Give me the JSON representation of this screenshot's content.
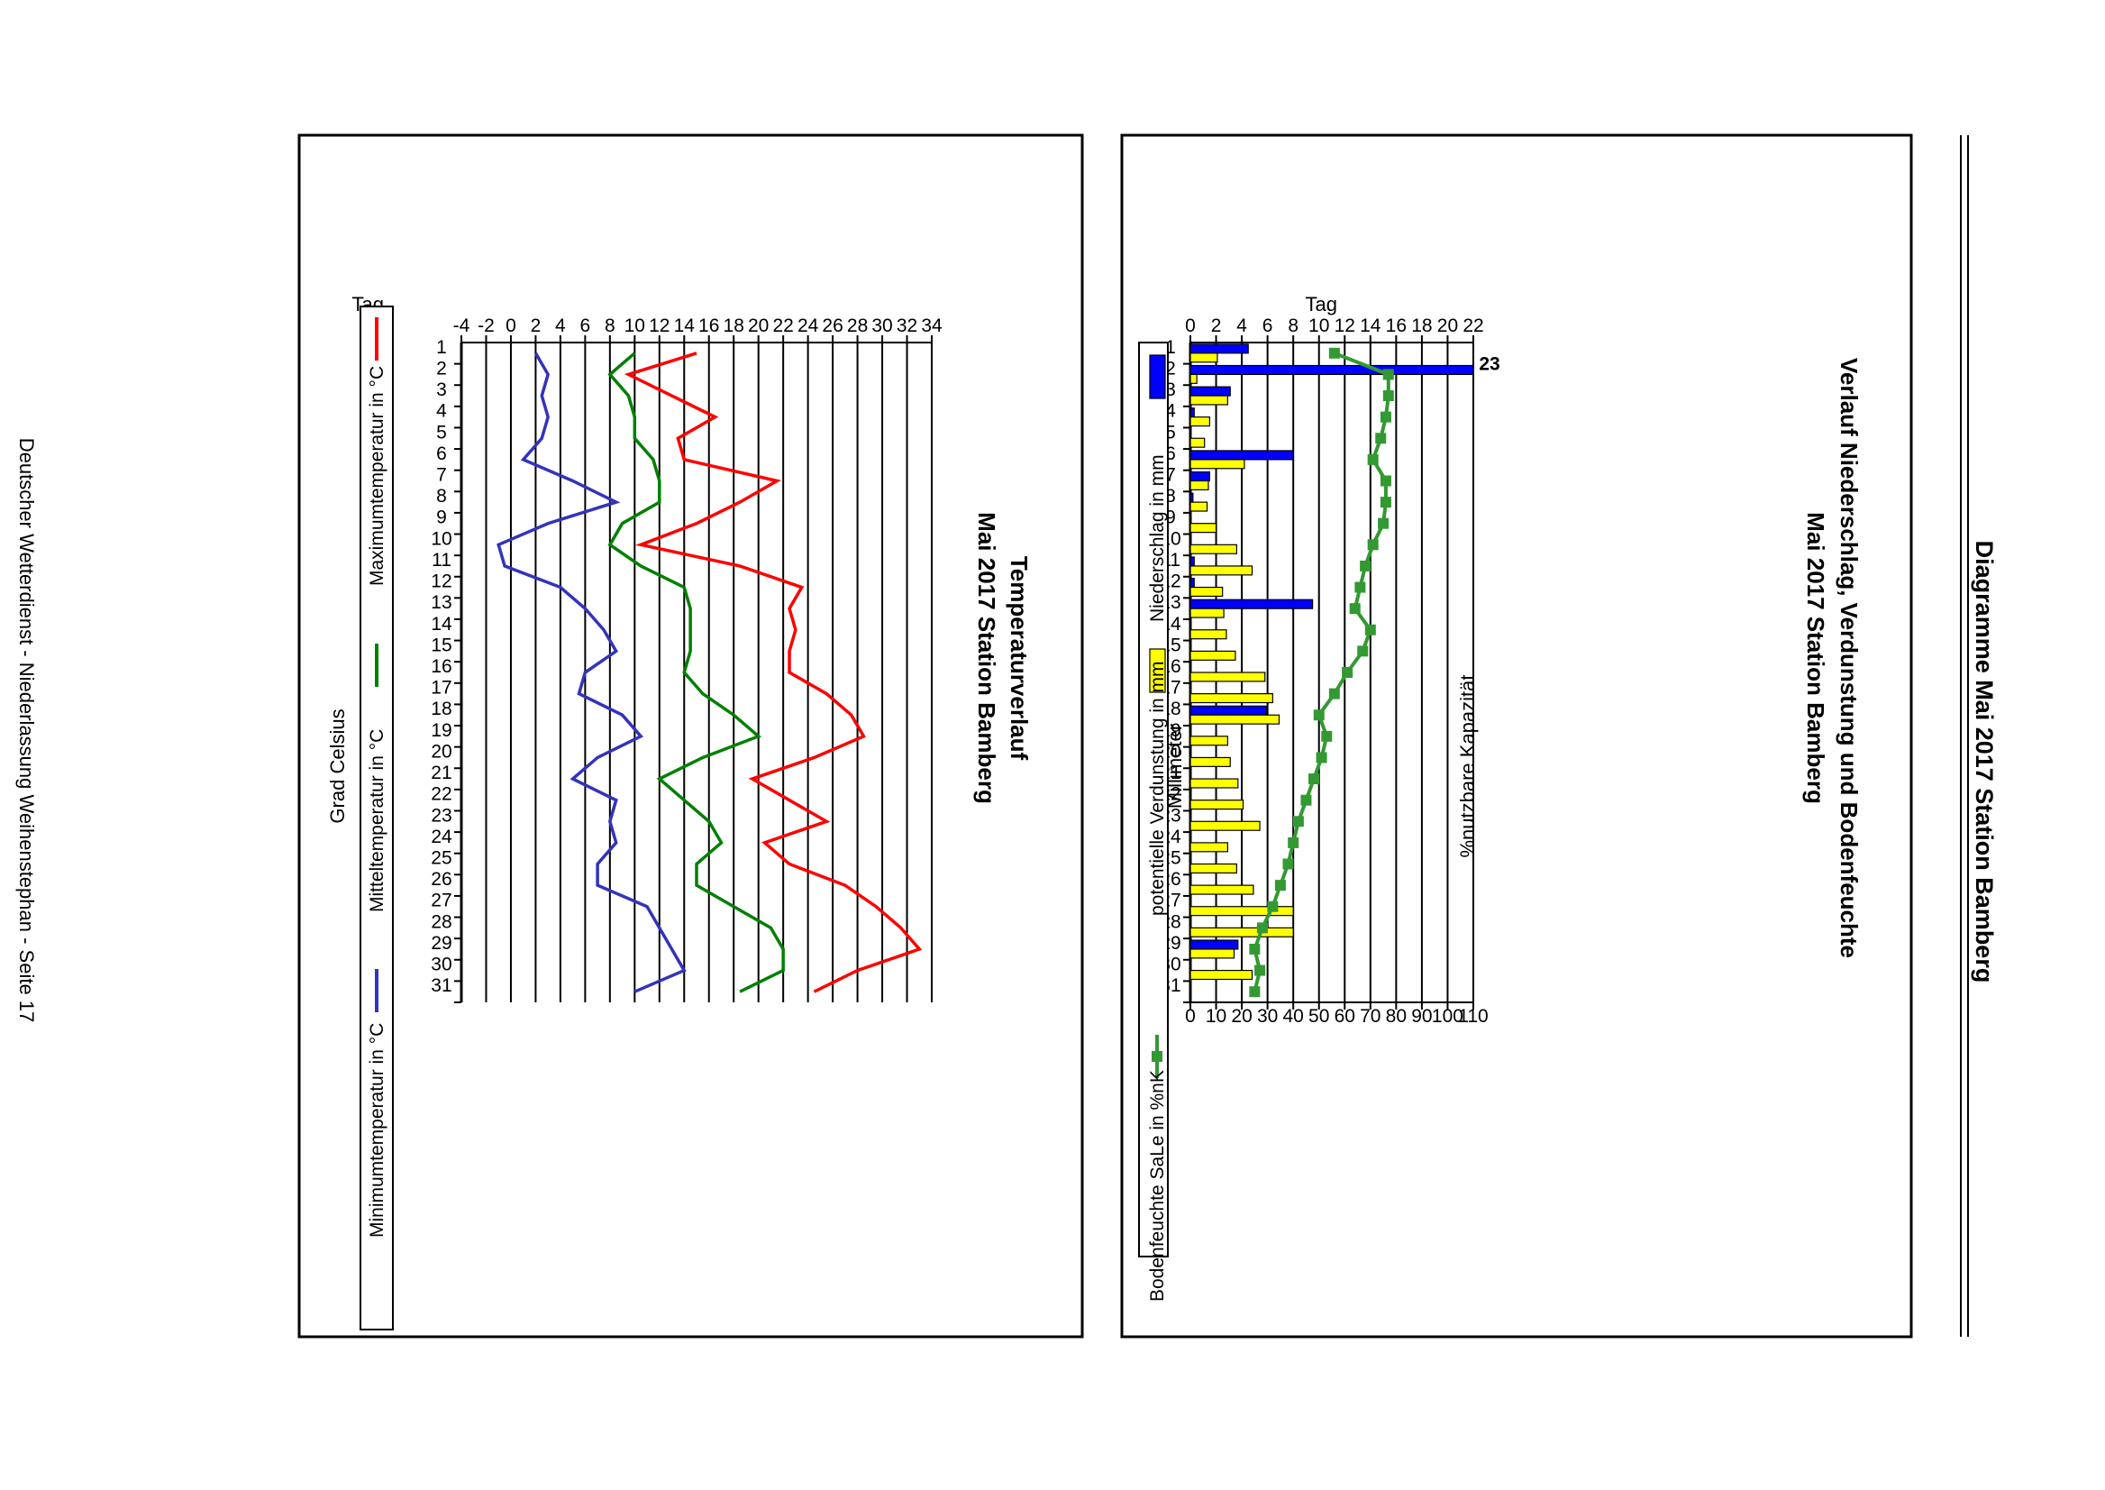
{
  "page": {
    "title": "Diagramme Mai 2017 Station Bamberg",
    "footer": "Deutscher Wetterdienst - Niederlassung Weihenstephan - Seite 17"
  },
  "chart_data": [
    {
      "type": "bar",
      "title_line1": "Verlauf Niederschlag, Verdunstung und Bodenfeuchte",
      "title_line2": "Mai 2017 Station Bamberg",
      "xlabel": "Tag",
      "ylabel_left": "Millimeter",
      "ylabel_right": "%nutzbare Kapazität",
      "ylim_left": [
        0,
        22
      ],
      "yticks_left": [
        0,
        2,
        4,
        6,
        8,
        10,
        12,
        14,
        16,
        18,
        20,
        22
      ],
      "ylim_right": [
        0,
        110
      ],
      "yticks_right": [
        0,
        10,
        20,
        30,
        40,
        50,
        60,
        70,
        80,
        90,
        100,
        110
      ],
      "categories": [
        "1",
        "2",
        "3",
        "4",
        "5",
        "6",
        "7",
        "8",
        "9",
        "10",
        "11",
        "12",
        "13",
        "14",
        "15",
        "16",
        "17",
        "18",
        "19",
        "20",
        "21",
        "22",
        "23",
        "24",
        "25",
        "26",
        "27",
        "28",
        "29",
        "30",
        "31"
      ],
      "overflow_label": "23",
      "series": [
        {
          "name": "Niederschlag in mm",
          "color": "#0000ff",
          "axis": "left",
          "values": [
            4.5,
            23,
            3.1,
            0.3,
            0,
            8,
            1.5,
            0.2,
            0,
            0,
            0.3,
            0.3,
            9.5,
            0,
            0,
            0,
            0,
            5.9,
            0,
            0,
            0,
            0,
            0,
            0,
            0,
            0,
            0,
            0,
            3.7,
            0,
            0
          ]
        },
        {
          "name": "potentielle Verdunstung in mm",
          "color": "#ffff00",
          "axis": "left",
          "values": [
            2.1,
            0.5,
            2.9,
            1.5,
            1.1,
            4.2,
            1.4,
            1.3,
            2.0,
            3.6,
            4.8,
            2.5,
            2.6,
            2.8,
            3.5,
            5.8,
            6.4,
            6.9,
            2.9,
            3.1,
            3.7,
            4.1,
            5.4,
            2.9,
            3.6,
            4.9,
            8.0,
            8.0,
            3.4,
            4.8,
            0
          ]
        },
        {
          "name": "Bodenfeuchte SaLe in %nK",
          "color": "#339933",
          "axis": "right",
          "values": [
            56,
            77,
            77,
            76,
            74,
            71,
            76,
            76,
            75,
            71,
            68,
            66,
            64,
            70,
            67,
            61,
            56,
            50,
            53,
            51,
            48,
            45,
            42,
            40,
            38,
            35,
            32,
            28,
            25,
            27,
            25
          ]
        }
      ]
    },
    {
      "type": "line",
      "title_line1": "Temperaturverlauf",
      "title_line2": "Mai 2017 Station Bamberg",
      "xlabel": "Tag",
      "ylabel": "Grad Celsius",
      "ylim": [
        -4,
        34
      ],
      "yticks": [
        -4,
        -2,
        0,
        2,
        4,
        6,
        8,
        10,
        12,
        14,
        16,
        18,
        20,
        22,
        24,
        26,
        28,
        30,
        32,
        34
      ],
      "categories": [
        "1",
        "2",
        "3",
        "4",
        "5",
        "6",
        "7",
        "8",
        "9",
        "10",
        "11",
        "12",
        "13",
        "14",
        "15",
        "16",
        "17",
        "18",
        "19",
        "20",
        "21",
        "22",
        "23",
        "24",
        "25",
        "26",
        "27",
        "28",
        "29",
        "30",
        "31"
      ],
      "series": [
        {
          "name": "Maximumtemperatur in °C",
          "color": "#ff0000",
          "values": [
            15,
            9.5,
            13,
            16.5,
            13.5,
            14,
            21.5,
            18.5,
            15,
            10.5,
            18.5,
            23.5,
            22.5,
            23,
            22.5,
            22.5,
            25.5,
            27.5,
            28.5,
            24.5,
            19.5,
            22.5,
            25.5,
            20.5,
            22.5,
            27,
            29.5,
            31.5,
            33,
            28,
            24.5
          ]
        },
        {
          "name": "Mitteltemperatur in °C",
          "color": "#008000",
          "values": [
            10,
            8,
            9.5,
            10,
            10,
            11.5,
            12,
            12,
            9,
            8,
            10.5,
            14,
            14.5,
            14.5,
            14.5,
            14,
            15.5,
            18,
            20,
            15.5,
            12,
            14,
            16,
            17,
            15,
            15,
            18,
            21,
            22,
            22,
            18.5
          ]
        },
        {
          "name": "Minimumtemperatur in °C",
          "color": "#3333bb",
          "values": [
            2,
            3,
            2.5,
            3,
            2.5,
            1,
            5,
            8.5,
            3,
            -1,
            -0.5,
            4,
            6,
            7.5,
            8.5,
            6,
            5.5,
            9,
            10.5,
            7,
            5,
            8.5,
            8,
            8.5,
            7,
            7,
            11,
            12,
            13,
            14,
            10
          ]
        }
      ]
    }
  ]
}
